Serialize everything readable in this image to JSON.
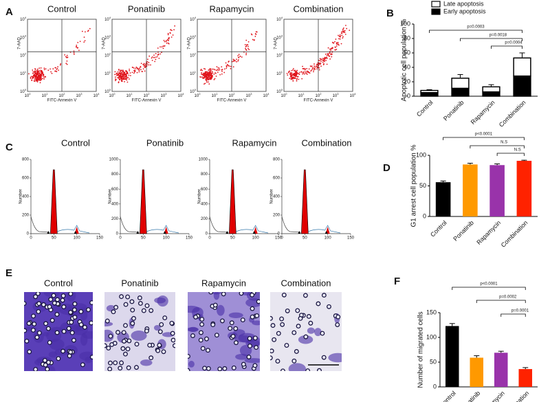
{
  "panel_labels": [
    "A",
    "B",
    "C",
    "D",
    "E",
    "F"
  ],
  "flow": {
    "titles": [
      "Control",
      "Ponatinib",
      "Rapamycin",
      "Combination"
    ],
    "x_label": "FITC-Annexin V",
    "y_label": "7-AAD",
    "ticks": [
      {
        "base": "10",
        "exp": "0"
      },
      {
        "base": "10",
        "exp": "1"
      },
      {
        "base": "10",
        "exp": "2"
      },
      {
        "base": "10",
        "exp": "3"
      },
      {
        "base": "10",
        "exp": "4"
      }
    ]
  },
  "cycle": {
    "titles": [
      "Control",
      "Ponatinib",
      "Rapamycin",
      "Combination"
    ],
    "y_label": "Number",
    "xlim": [
      0,
      150
    ],
    "x_ticks": [
      0,
      50,
      100,
      150
    ],
    "ylims": [
      [
        0,
        800
      ],
      [
        0,
        1000
      ],
      [
        0,
        1000
      ],
      [
        0,
        800
      ]
    ],
    "y_ticks": [
      [
        0,
        200,
        400,
        600,
        800
      ],
      [
        0,
        200,
        400,
        600,
        800,
        1000
      ],
      [
        0,
        200,
        400,
        600,
        800,
        1000
      ],
      [
        0,
        200,
        400,
        600,
        800
      ]
    ]
  },
  "migration": {
    "titles": [
      "Control",
      "Ponatinib",
      "Rapamycin",
      "Combination"
    ]
  },
  "chart_data": [
    {
      "type": "stacked_bar",
      "y_label": "Apoptotic cell population %",
      "categories": [
        "Control",
        "Ponatinib",
        "Rapamycin",
        "Combination"
      ],
      "series": [
        {
          "name": "Early apoptosis",
          "color": "#000000",
          "values": [
            5,
            11,
            6,
            28
          ],
          "errors": [
            1,
            1,
            1,
            3
          ]
        },
        {
          "name": "Late apoptosis",
          "color": "#ffffff",
          "values": [
            3,
            14,
            7,
            25
          ],
          "errors": [
            1,
            5,
            3,
            7
          ]
        }
      ],
      "ylim": [
        0,
        100
      ],
      "yticks": [
        0,
        20,
        40,
        60,
        80,
        100
      ],
      "comparisons": [
        {
          "from": 0,
          "to": 3,
          "label": "p=0.0003"
        },
        {
          "from": 1,
          "to": 3,
          "label": "p=0.0018"
        },
        {
          "from": 2,
          "to": 3,
          "label": "p=0.0004"
        }
      ]
    },
    {
      "type": "bar",
      "y_label": "G1 arrest cell population %",
      "categories": [
        "Control",
        "Ponatinib",
        "Rapamycin",
        "Combination"
      ],
      "values": [
        56,
        85,
        84,
        91
      ],
      "errors": [
        2,
        2,
        2,
        1
      ],
      "colors": [
        "#000000",
        "#ff9900",
        "#9933aa",
        "#ff2200"
      ],
      "ylim": [
        0,
        100
      ],
      "yticks": [
        0,
        50,
        100
      ],
      "comparisons": [
        {
          "from": 0,
          "to": 3,
          "label": "p<0.0001"
        },
        {
          "from": 1,
          "to": 3,
          "label": "N.S"
        },
        {
          "from": 2,
          "to": 3,
          "label": "N.S"
        }
      ]
    },
    {
      "type": "bar",
      "y_label": "Number of migrated cells",
      "categories": [
        "Control",
        "Ponatinib",
        "Rapamycin",
        "Combination"
      ],
      "values": [
        123,
        59,
        69,
        36
      ],
      "errors": [
        5,
        4,
        3,
        3
      ],
      "colors": [
        "#000000",
        "#ff9900",
        "#9933aa",
        "#ff2200"
      ],
      "ylim": [
        0,
        150
      ],
      "yticks": [
        0,
        50,
        100,
        150
      ],
      "comparisons": [
        {
          "from": 0,
          "to": 3,
          "label": "p<0.0001"
        },
        {
          "from": 1,
          "to": 3,
          "label": "p=0.0002"
        },
        {
          "from": 2,
          "to": 3,
          "label": "p=0.0001"
        }
      ]
    }
  ]
}
